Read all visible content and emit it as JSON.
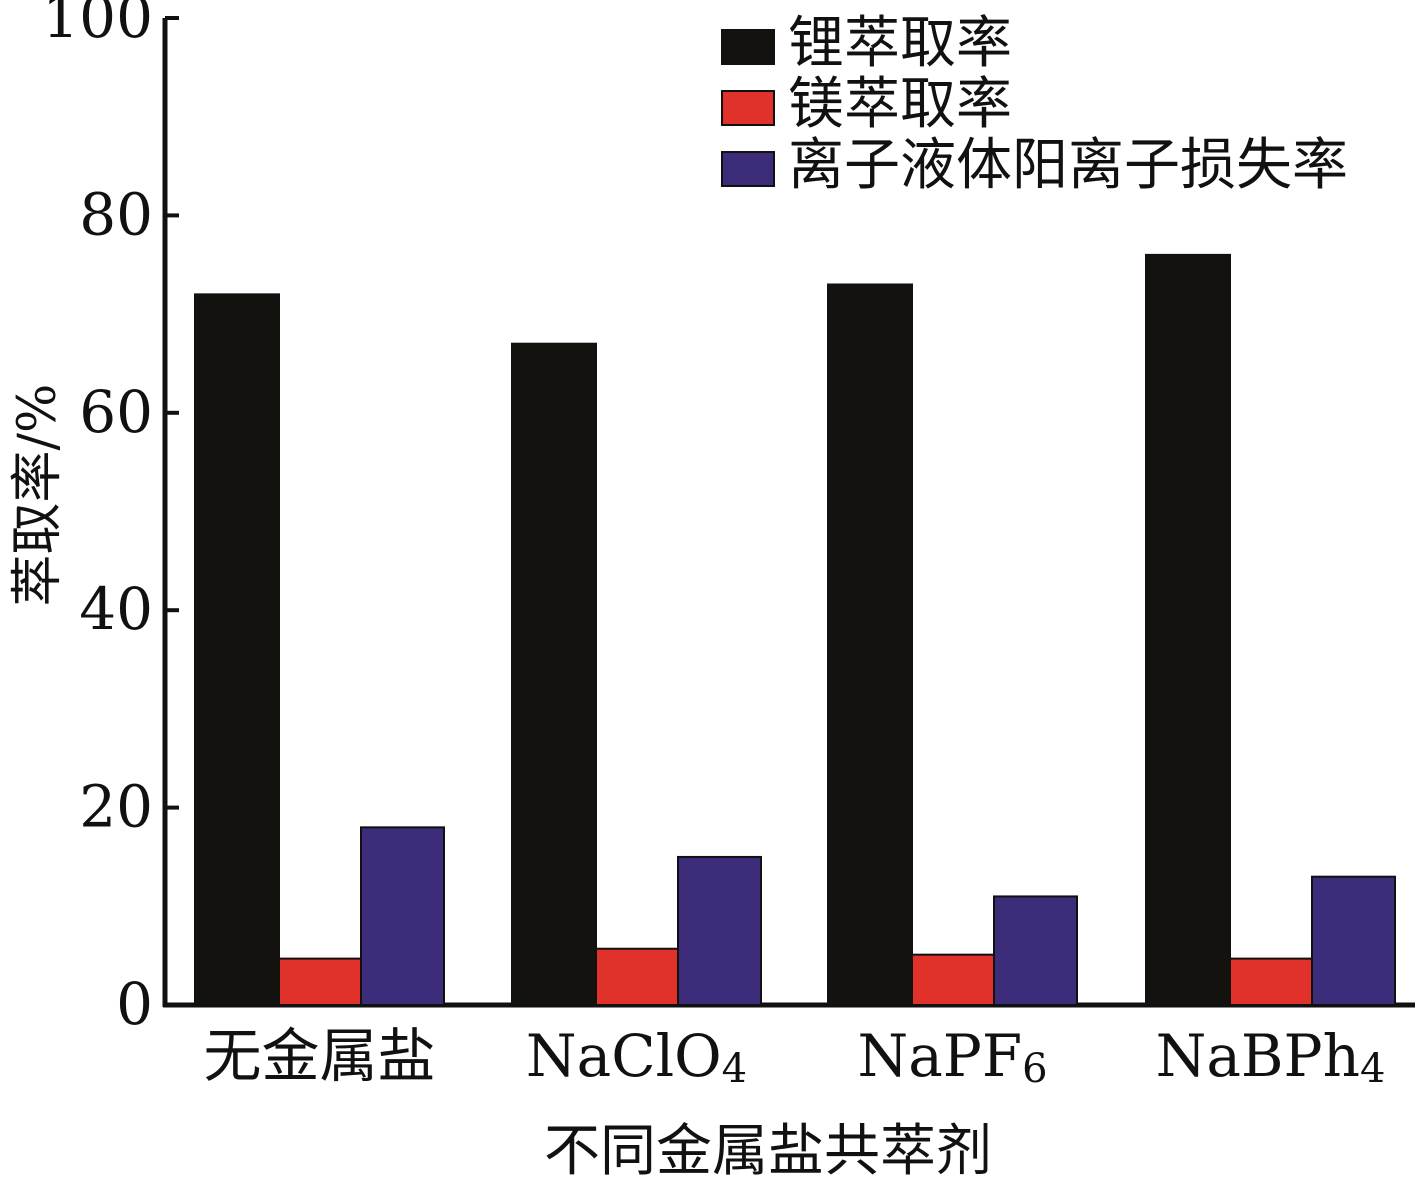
{
  "chart_data": {
    "type": "bar",
    "title": "",
    "xlabel": "不同金属盐共萃剂",
    "ylabel": "萃取率/%",
    "ylim": [
      0,
      100
    ],
    "yticks": [
      "0",
      "20",
      "40",
      "60",
      "80",
      "100"
    ],
    "categories": [
      {
        "base": "无金属盐",
        "sub": ""
      },
      {
        "base": "NaClO",
        "sub": "4"
      },
      {
        "base": "NaPF",
        "sub": "6"
      },
      {
        "base": "NaBPh",
        "sub": "4"
      }
    ],
    "series": [
      {
        "name": "锂萃取率",
        "color": "#14120f",
        "values": [
          72,
          67,
          73,
          76
        ]
      },
      {
        "name": "镁萃取率",
        "color": "#e0322b",
        "values": [
          4.7,
          5.7,
          5.1,
          4.7
        ]
      },
      {
        "name": "离子液体阳离子损失率",
        "color": "#3c2c7a",
        "values": [
          18,
          15,
          11,
          13
        ]
      }
    ],
    "legend": "top-right",
    "grid": false
  }
}
